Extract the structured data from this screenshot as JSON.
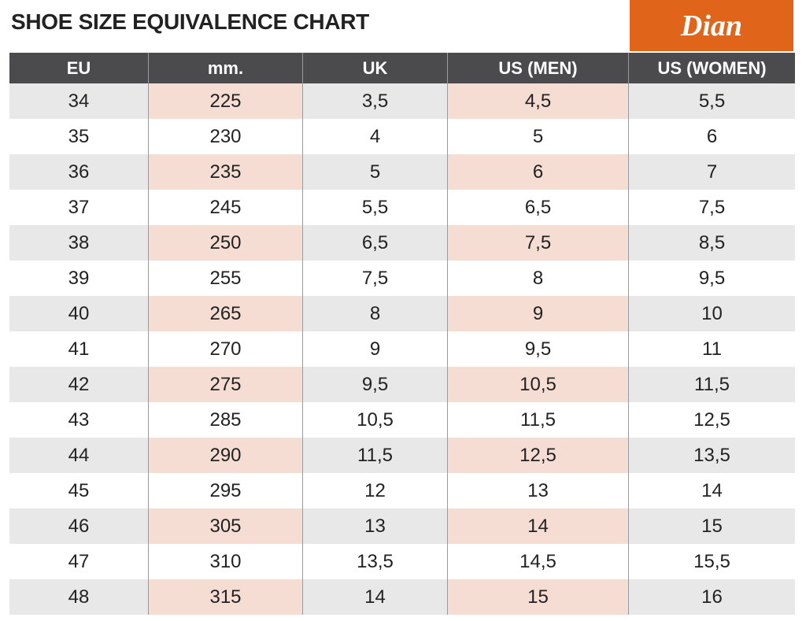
{
  "header": {
    "title": "SHOE SIZE EQUIVALENCE CHART",
    "logo": "Dian"
  },
  "table": {
    "columns": [
      "EU",
      "mm.",
      "UK",
      "US (MEN)",
      "US (WOMEN)"
    ],
    "rows": [
      [
        "34",
        "225",
        "3,5",
        "4,5",
        "5,5"
      ],
      [
        "35",
        "230",
        "4",
        "5",
        "6"
      ],
      [
        "36",
        "235",
        "5",
        "6",
        "7"
      ],
      [
        "37",
        "245",
        "5,5",
        "6,5",
        "7,5"
      ],
      [
        "38",
        "250",
        "6,5",
        "7,5",
        "8,5"
      ],
      [
        "39",
        "255",
        "7,5",
        "8",
        "9,5"
      ],
      [
        "40",
        "265",
        "8",
        "9",
        "10"
      ],
      [
        "41",
        "270",
        "9",
        "9,5",
        "11"
      ],
      [
        "42",
        "275",
        "9,5",
        "10,5",
        "11,5"
      ],
      [
        "43",
        "285",
        "10,5",
        "11,5",
        "12,5"
      ],
      [
        "44",
        "290",
        "11,5",
        "12,5",
        "13,5"
      ],
      [
        "45",
        "295",
        "12",
        "13",
        "14"
      ],
      [
        "46",
        "305",
        "13",
        "14",
        "15"
      ],
      [
        "47",
        "310",
        "13,5",
        "14,5",
        "15,5"
      ],
      [
        "48",
        "315",
        "14",
        "15",
        "16"
      ]
    ]
  }
}
